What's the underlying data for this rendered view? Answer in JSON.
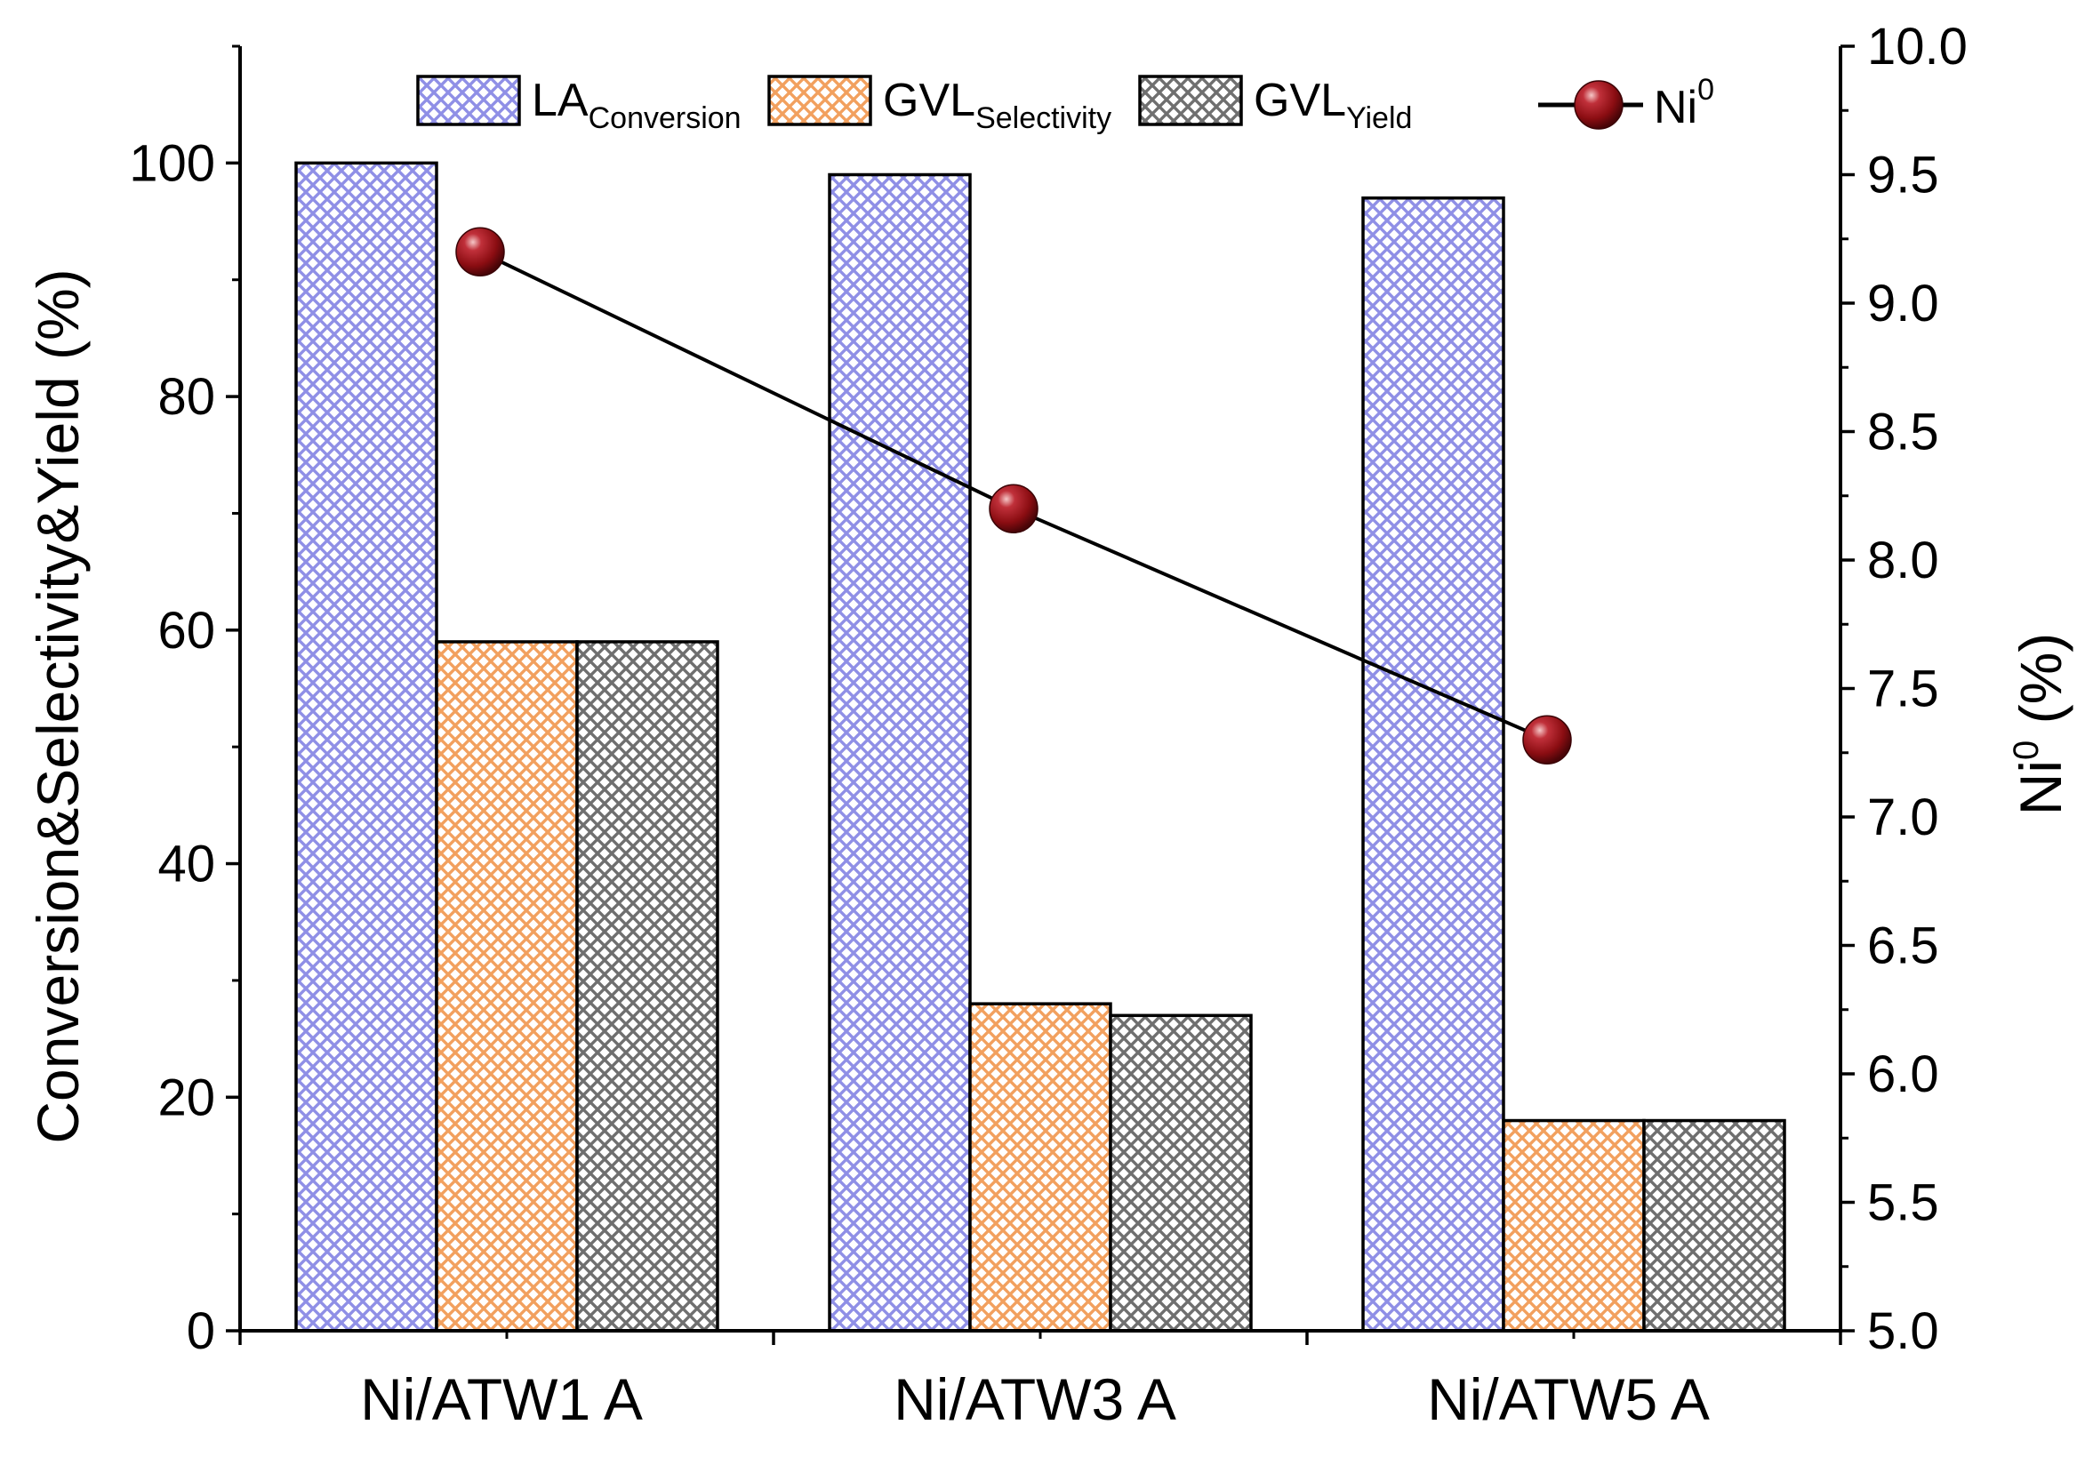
{
  "chart_data": {
    "type": "bar",
    "categories": [
      "Ni/ATW1 A",
      "Ni/ATW3 A",
      "Ni/ATW5 A"
    ],
    "series": [
      {
        "name": "LA",
        "subscript": "Conversion",
        "axis": "left",
        "color": "#8f8fe6",
        "values": [
          100,
          99,
          97
        ]
      },
      {
        "name": "GVL",
        "subscript": "Selectivity",
        "axis": "left",
        "color": "#f2a05e",
        "values": [
          59,
          28,
          18
        ]
      },
      {
        "name": "GVL",
        "subscript": "Yield",
        "axis": "left",
        "color": "#6f6f6f",
        "values": [
          59,
          27,
          18
        ]
      }
    ],
    "line_series": {
      "name": "Ni",
      "superscript": "0",
      "axis": "right",
      "color": "#8b0d12",
      "values": [
        9.2,
        8.2,
        7.3
      ]
    },
    "ylabel": "Conversion&Selectivity&Yield (%)",
    "y2label_base": "Ni",
    "y2label_sup": "0",
    "y2label_unit": " (%)",
    "ylim": [
      0,
      110
    ],
    "y2lim": [
      5.0,
      10.0
    ],
    "yticks": [
      "0",
      "20",
      "40",
      "60",
      "80",
      "100"
    ],
    "y2ticks": [
      "5.0",
      "5.5",
      "6.0",
      "6.5",
      "7.0",
      "7.5",
      "8.0",
      "8.5",
      "9.0",
      "9.5",
      "10.0"
    ],
    "legend_position": "top",
    "grid": false
  }
}
